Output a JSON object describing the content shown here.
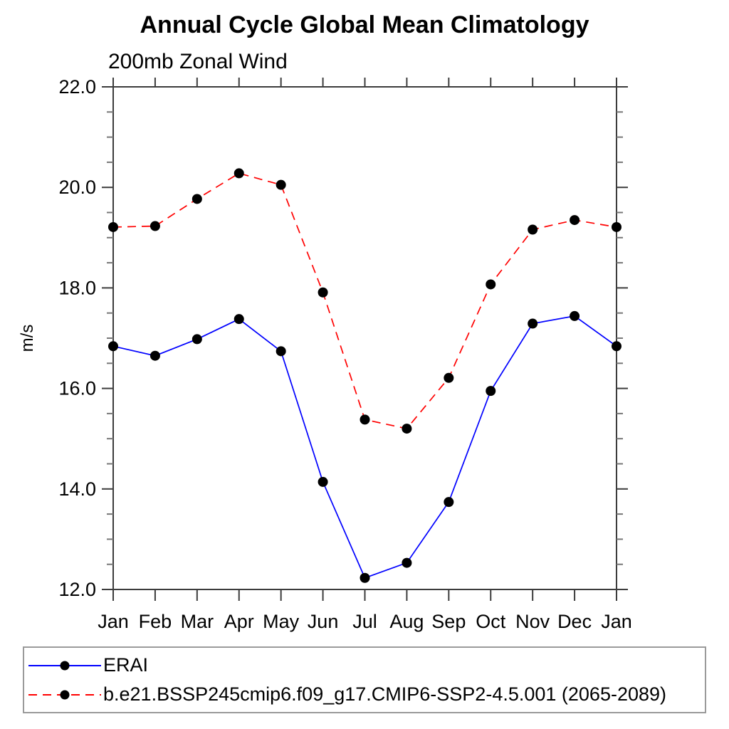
{
  "chart_data": {
    "type": "line",
    "title": "Annual Cycle Global Mean Climatology",
    "subtitle": "200mb Zonal Wind",
    "ylabel": "m/s",
    "xlabel": "",
    "categories": [
      "Jan",
      "Feb",
      "Mar",
      "Apr",
      "May",
      "Jun",
      "Jul",
      "Aug",
      "Sep",
      "Oct",
      "Nov",
      "Dec",
      "Jan"
    ],
    "ylim": [
      12.0,
      22.0
    ],
    "ytick_labels": [
      "12.0",
      "14.0",
      "16.0",
      "18.0",
      "20.0",
      "22.0"
    ],
    "ytick_major_step": 2.0,
    "ytick_minor_step": 0.5,
    "grid": "off",
    "legend_position": "bottom-left-box",
    "frame_color": "#3c3c3c",
    "tick_color": "#777777",
    "marker_color": "#000000",
    "series": [
      {
        "name": "ERAI",
        "color": "#0000ff",
        "style": "solid",
        "values": [
          16.84,
          16.65,
          16.98,
          17.38,
          16.74,
          14.14,
          12.23,
          12.53,
          13.74,
          15.95,
          17.29,
          17.44,
          16.84
        ]
      },
      {
        "name": "b.e21.BSSP245cmip6.f09_g17.CMIP6-SSP2-4.5.001 (2065-2089)",
        "color": "#ff0000",
        "style": "dashed",
        "values": [
          19.21,
          19.23,
          19.77,
          20.28,
          20.05,
          17.91,
          15.38,
          15.2,
          16.21,
          18.07,
          19.16,
          19.35,
          19.21
        ]
      }
    ]
  }
}
